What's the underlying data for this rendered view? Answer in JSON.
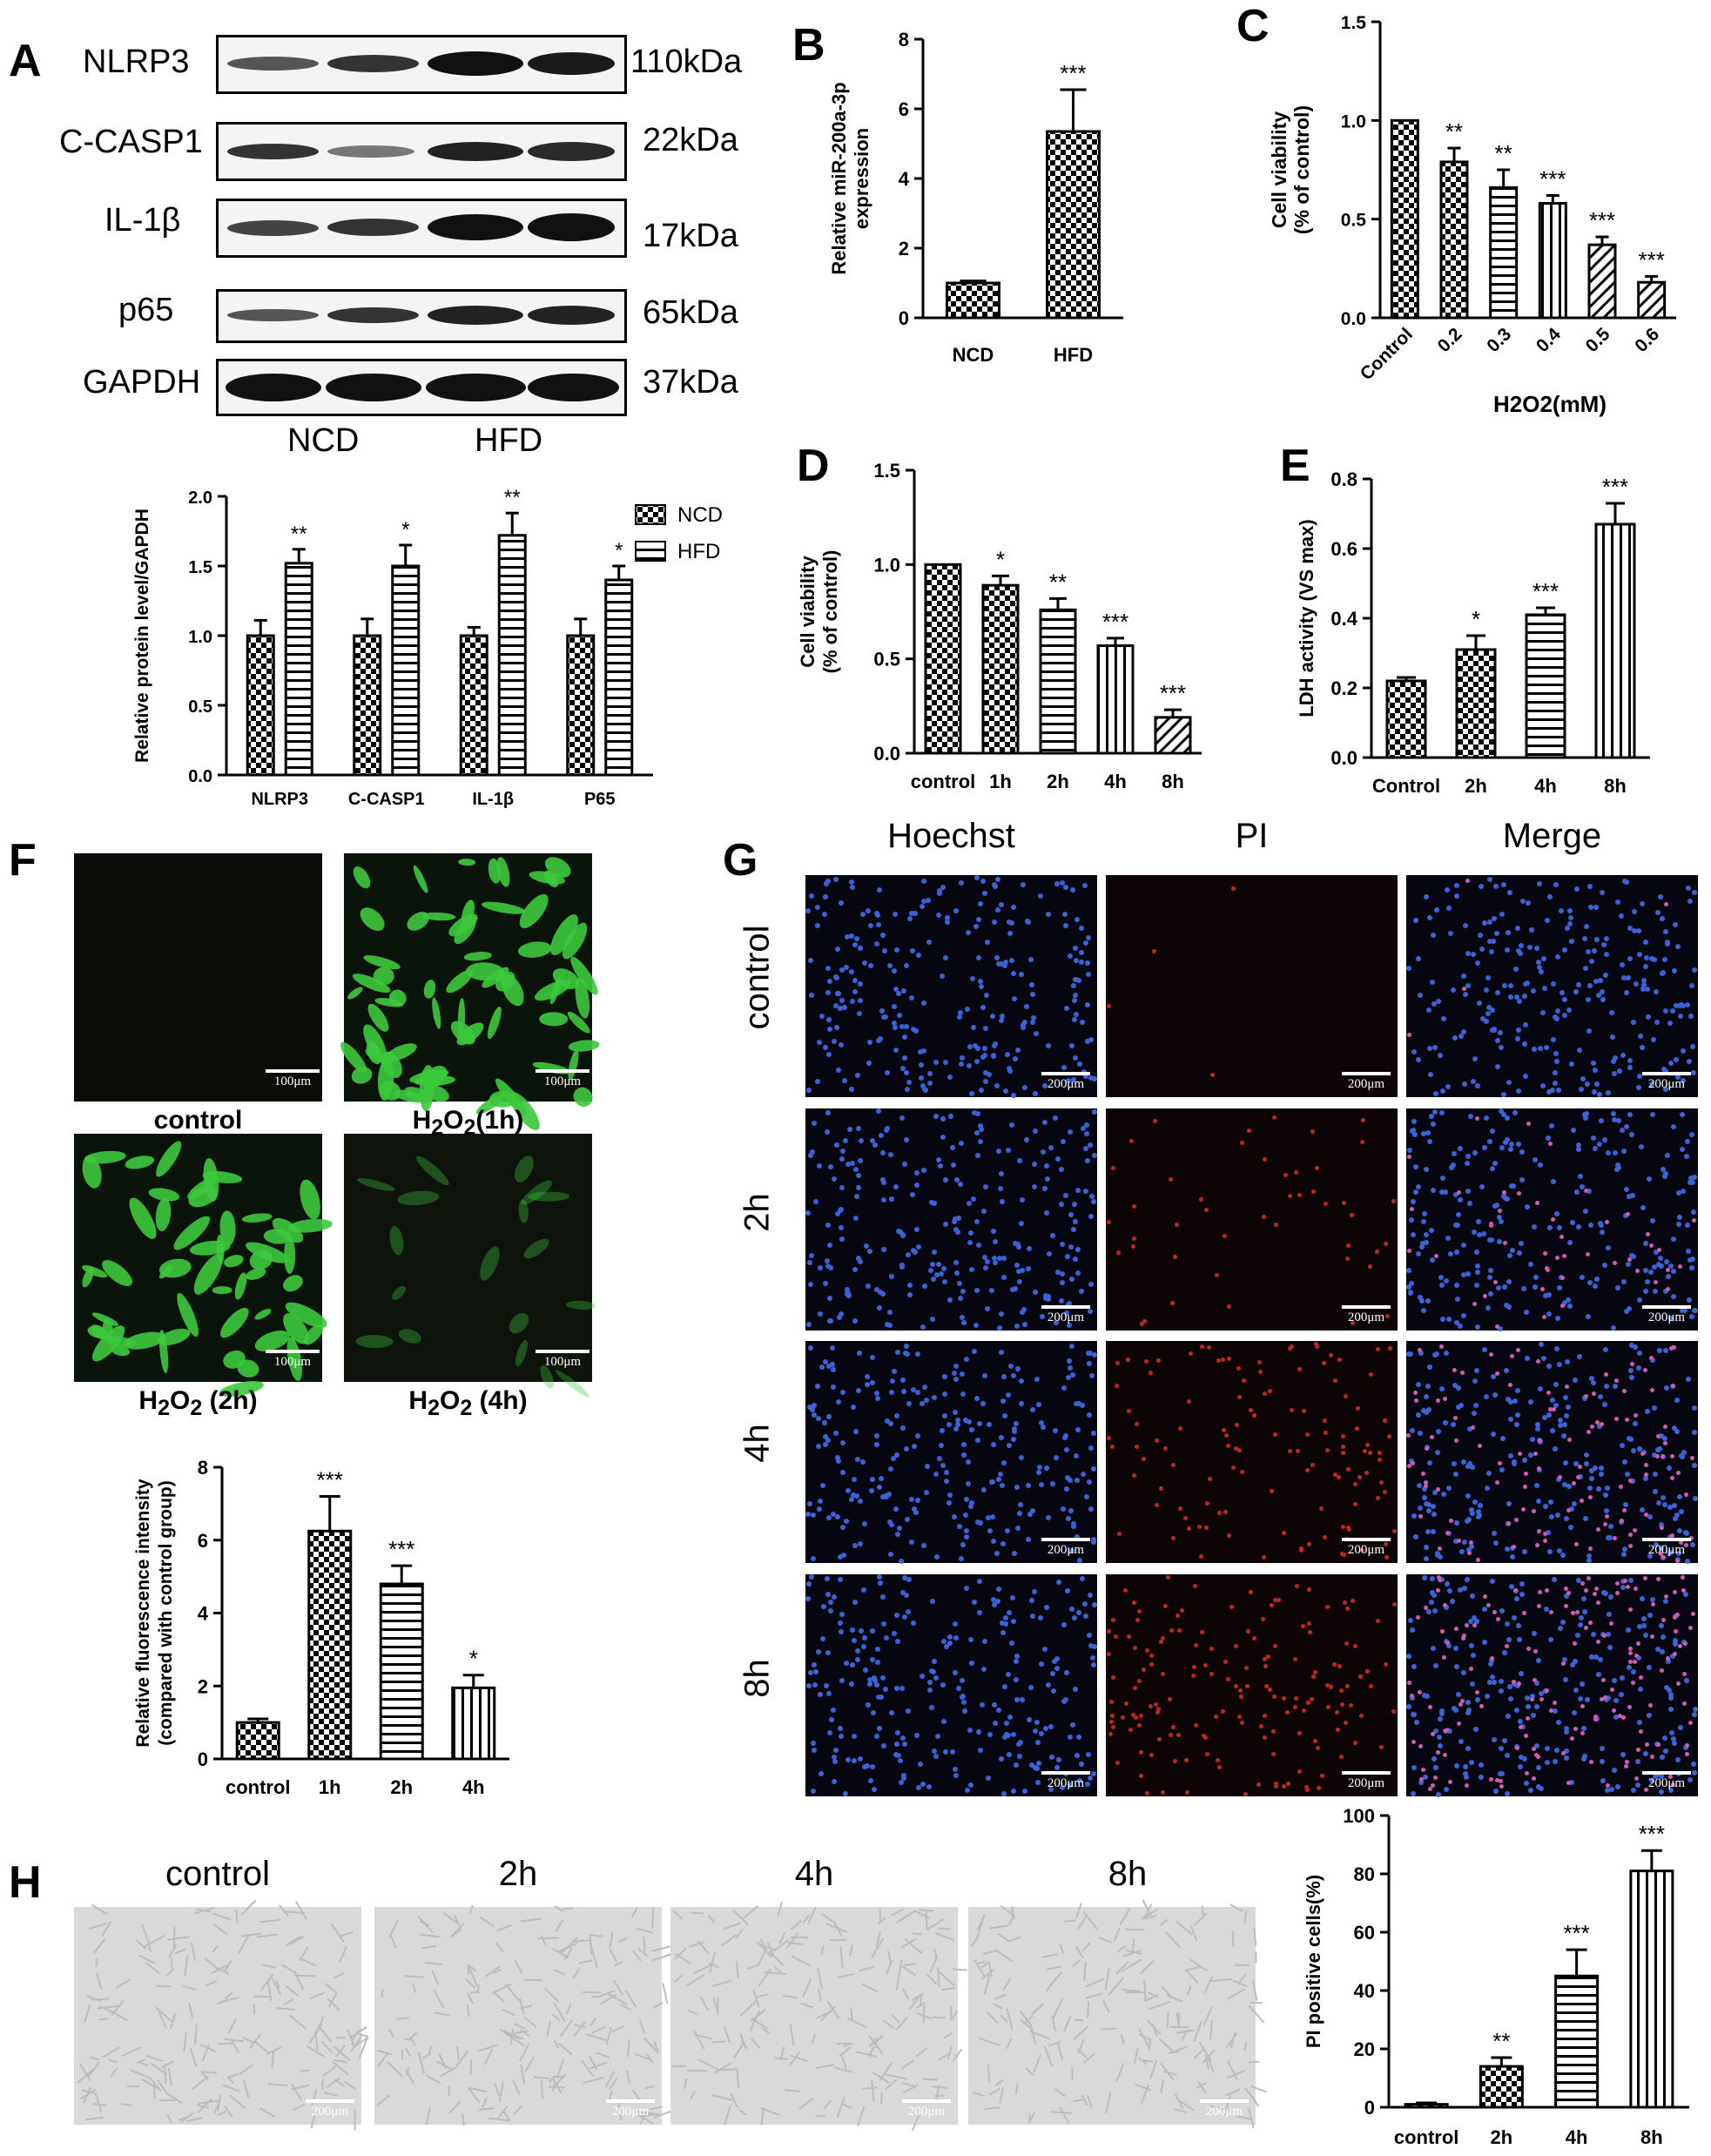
{
  "panel_letters": {
    "A": "A",
    "B": "B",
    "C": "C",
    "D": "D",
    "E": "E",
    "F": "F",
    "G": "G",
    "H": "H"
  },
  "blot": {
    "rows": [
      {
        "protein": "NLRP3",
        "size": "110kDa"
      },
      {
        "protein": "C-CASP1",
        "size": "22kDa"
      },
      {
        "protein": "IL-1β",
        "size": "17kDa"
      },
      {
        "protein": "p65",
        "size": "65kDa"
      },
      {
        "protein": "GAPDH",
        "size": "37kDa"
      }
    ],
    "groups": [
      "NCD",
      "HFD"
    ]
  },
  "panel_f": {
    "captions": [
      "control",
      "(1h)",
      "(2h)",
      "(4h)"
    ],
    "caption_prefix": "H",
    "caption_sub": "2",
    "caption_mid": "O",
    "scale": "100μm"
  },
  "panel_g": {
    "columns": [
      "Hoechst",
      "PI",
      "Merge"
    ],
    "rows": [
      "control",
      "2h",
      "4h",
      "8h"
    ],
    "scale": "200μm"
  },
  "panel_h": {
    "columns": [
      "control",
      "2h",
      "4h",
      "8h"
    ],
    "scale": "200μm"
  },
  "chart_data": [
    {
      "id": "A_bar",
      "type": "bar",
      "title": "",
      "ylabel": "Relative protein level/GAPDH",
      "xlabel": "",
      "categories": [
        "NLRP3",
        "C-CASP1",
        "IL-1β",
        "P65"
      ],
      "series": [
        {
          "name": "NCD",
          "values": [
            1.0,
            1.0,
            1.0,
            1.0
          ],
          "errors": [
            0.11,
            0.12,
            0.06,
            0.12
          ],
          "sig": [
            "",
            "",
            "",
            ""
          ]
        },
        {
          "name": "HFD",
          "values": [
            1.52,
            1.5,
            1.72,
            1.4
          ],
          "errors": [
            0.1,
            0.15,
            0.16,
            0.1
          ],
          "sig": [
            "**",
            "*",
            "**",
            "*"
          ]
        }
      ],
      "ylim": [
        0,
        2.0
      ],
      "yticks": [
        "0.0",
        "0.5",
        "1.0",
        "1.5",
        "2.0"
      ],
      "legend": "top-right"
    },
    {
      "id": "B",
      "type": "bar",
      "title": "",
      "ylabel": "Relative miR-200a-3p expression",
      "xlabel": "",
      "categories": [
        "NCD",
        "HFD"
      ],
      "values": [
        1.0,
        5.35
      ],
      "errors": [
        0.06,
        1.2
      ],
      "sig": [
        "",
        "***"
      ],
      "ylim": [
        0,
        8
      ],
      "yticks": [
        "0",
        "2",
        "4",
        "6",
        "8"
      ]
    },
    {
      "id": "C",
      "type": "bar",
      "title": "",
      "ylabel": "Cell viability (% of control)",
      "xlabel": "H2O2(mM)",
      "categories": [
        "Control",
        "0.2",
        "0.3",
        "0.4",
        "0.5",
        "0.6"
      ],
      "values": [
        1.0,
        0.79,
        0.66,
        0.58,
        0.37,
        0.18
      ],
      "errors": [
        0,
        0.07,
        0.09,
        0.04,
        0.04,
        0.03
      ],
      "sig": [
        "",
        "**",
        "**",
        "***",
        "***",
        "***"
      ],
      "ylim": [
        0,
        1.5
      ],
      "yticks": [
        "0.0",
        "0.5",
        "1.0",
        "1.5"
      ]
    },
    {
      "id": "D",
      "type": "bar",
      "title": "",
      "ylabel": "Cell viability (% of control)",
      "xlabel": "",
      "categories": [
        "control",
        "1h",
        "2h",
        "4h",
        "8h"
      ],
      "values": [
        1.0,
        0.89,
        0.76,
        0.57,
        0.19
      ],
      "errors": [
        0,
        0.05,
        0.06,
        0.04,
        0.04
      ],
      "sig": [
        "",
        "*",
        "**",
        "***",
        "***"
      ],
      "ylim": [
        0,
        1.5
      ],
      "yticks": [
        "0.0",
        "0.5",
        "1.0",
        "1.5"
      ]
    },
    {
      "id": "E",
      "type": "bar",
      "title": "",
      "ylabel": "LDH activity  (VS max)",
      "xlabel": "",
      "categories": [
        "Control",
        "2h",
        "4h",
        "8h"
      ],
      "values": [
        0.22,
        0.31,
        0.41,
        0.67
      ],
      "errors": [
        0.01,
        0.04,
        0.02,
        0.06
      ],
      "sig": [
        "",
        "*",
        "***",
        "***"
      ],
      "ylim": [
        0,
        0.8
      ],
      "yticks": [
        "0.0",
        "0.2",
        "0.4",
        "0.6",
        "0.8"
      ]
    },
    {
      "id": "F_bar",
      "type": "bar",
      "title": "",
      "ylabel": "Relative fluorescence intensity (compared with control group)",
      "xlabel": "",
      "categories": [
        "control",
        "1h",
        "2h",
        "4h"
      ],
      "values": [
        1.0,
        6.25,
        4.8,
        1.95
      ],
      "errors": [
        0.1,
        0.95,
        0.5,
        0.35
      ],
      "sig": [
        "",
        "***",
        "***",
        "*"
      ],
      "ylim": [
        0,
        8
      ],
      "yticks": [
        "0",
        "2",
        "4",
        "6",
        "8"
      ]
    },
    {
      "id": "G_bar",
      "type": "bar",
      "title": "",
      "ylabel": "PI positive cells(%)",
      "xlabel": "",
      "categories": [
        "control",
        "2h",
        "4h",
        "8h"
      ],
      "values": [
        1.0,
        14,
        45,
        81
      ],
      "errors": [
        0.5,
        3,
        9,
        7
      ],
      "sig": [
        "",
        "**",
        "***",
        "***"
      ],
      "ylim": [
        0,
        100
      ],
      "yticks": [
        "0",
        "20",
        "40",
        "60",
        "80",
        "100"
      ]
    }
  ]
}
